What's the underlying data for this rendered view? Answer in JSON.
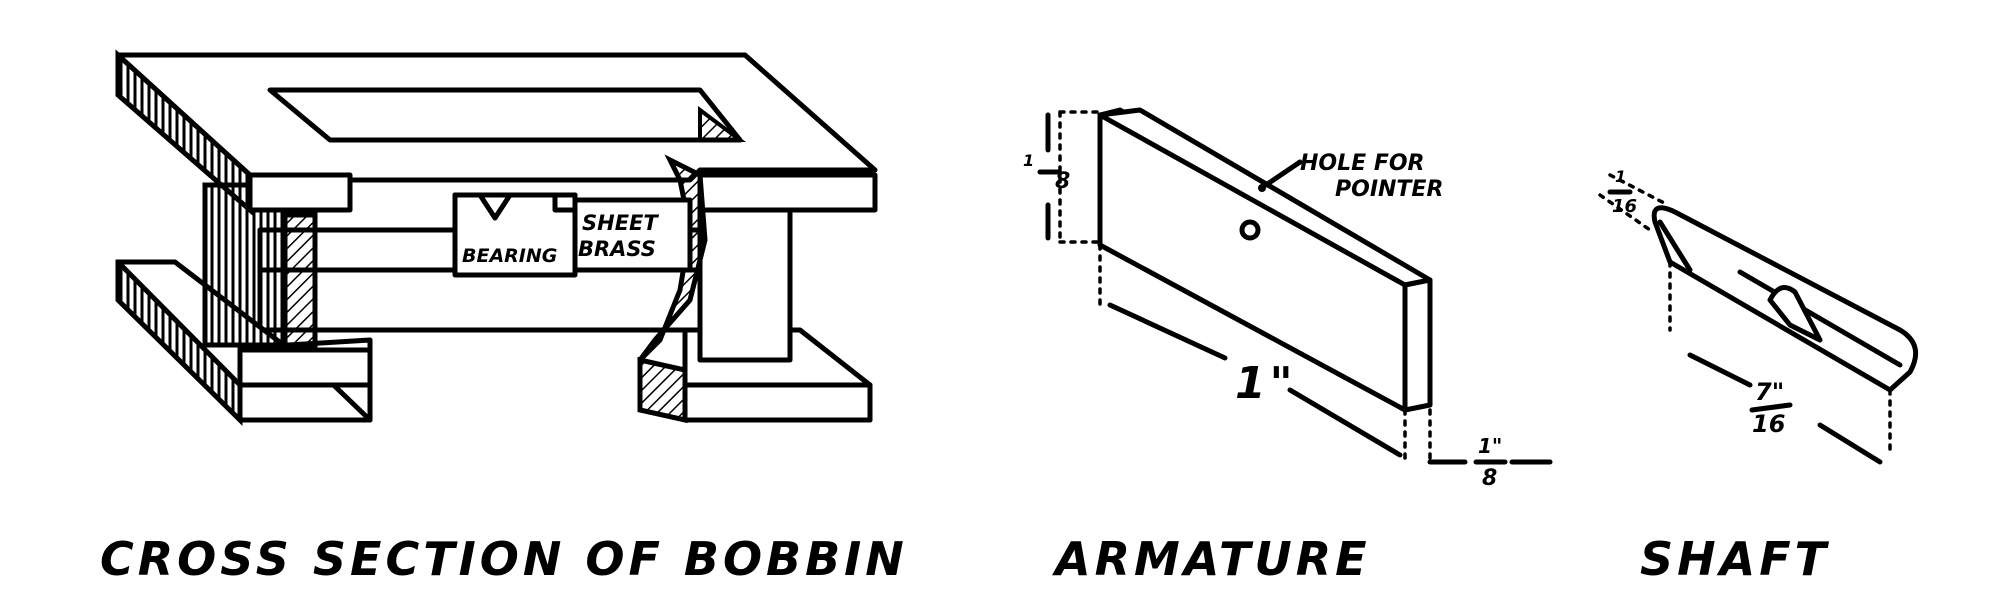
{
  "figures": {
    "bobbin": {
      "caption": "CROSS SECTION OF BOBBIN",
      "bearing_label": "BEARING",
      "sheet_label_1": "SHEET",
      "sheet_label_2": "BRASS"
    },
    "armature": {
      "caption": "ARMATURE",
      "hole_label_1": "HOLE FOR",
      "hole_label_2": "POINTER",
      "height_num": "1",
      "height_den": "8",
      "length_label": "1\"",
      "thickness_num": "1\"",
      "thickness_den": "8"
    },
    "shaft": {
      "caption": "SHAFT",
      "diam_num": "1",
      "diam_den": "16",
      "length_num": "7\"",
      "length_den": "16"
    }
  }
}
